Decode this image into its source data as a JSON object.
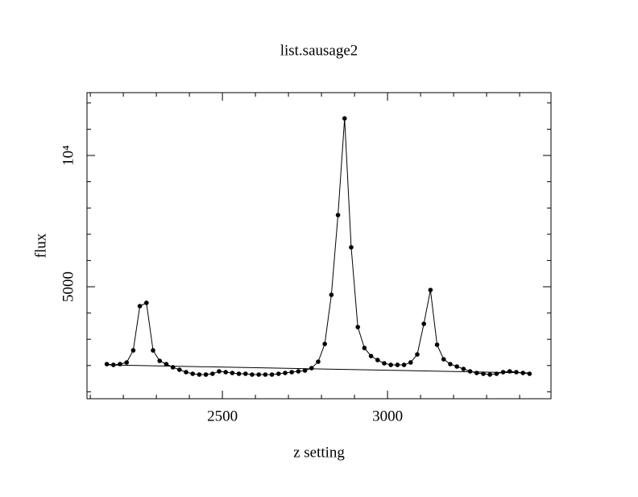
{
  "chart_data": {
    "type": "line",
    "title": "list.sausage2",
    "xlabel": "z setting",
    "ylabel": "flux",
    "xlim": [
      2090,
      3495
    ],
    "ylim": [
      736,
      12393
    ],
    "xticks": [
      2500,
      3000
    ],
    "xminorticks": [
      2100,
      2200,
      2300,
      2400,
      2600,
      2700,
      2800,
      2900,
      3100,
      3200,
      3300,
      3400
    ],
    "yticks": [
      5000,
      {
        "value": 10000,
        "label": "10⁴"
      }
    ],
    "yminorticks": [
      1000,
      2000,
      3000,
      4000,
      6000,
      7000,
      8000,
      9000,
      11000,
      12000
    ],
    "color": "#000000",
    "series": [
      {
        "markers": true,
        "x": [
          2150,
          2170,
          2190,
          2210,
          2230,
          2250,
          2270,
          2290,
          2310,
          2330,
          2350,
          2370,
          2390,
          2410,
          2430,
          2450,
          2470,
          2490,
          2510,
          2530,
          2550,
          2570,
          2590,
          2610,
          2630,
          2650,
          2670,
          2690,
          2710,
          2730,
          2750,
          2770,
          2790,
          2810,
          2830,
          2850,
          2870,
          2890,
          2910,
          2930,
          2950,
          2970,
          2990,
          3010,
          3030,
          3050,
          3070,
          3090,
          3110,
          3130,
          3150,
          3170,
          3190,
          3210,
          3230,
          3250,
          3270,
          3290,
          3310,
          3330,
          3350,
          3370,
          3390,
          3410,
          3430
        ],
        "values": [
          2055,
          2025,
          2055,
          2115,
          2577,
          4264,
          4387,
          2577,
          2178,
          2055,
          1933,
          1840,
          1748,
          1687,
          1656,
          1656,
          1687,
          1779,
          1748,
          1718,
          1687,
          1687,
          1656,
          1656,
          1656,
          1656,
          1687,
          1718,
          1748,
          1779,
          1810,
          1902,
          2147,
          2822,
          4693,
          7730,
          11411,
          6503,
          3466,
          2669,
          2362,
          2209,
          2086,
          2025,
          2025,
          2025,
          2117,
          2423,
          3589,
          4877,
          2791,
          2239,
          2055,
          1963,
          1871,
          1779,
          1718,
          1687,
          1656,
          1687,
          1748,
          1779,
          1748,
          1718,
          1687
        ]
      },
      {
        "markers": false,
        "x": [
          2150,
          3430
        ],
        "values": [
          2025,
          1718
        ]
      }
    ]
  }
}
